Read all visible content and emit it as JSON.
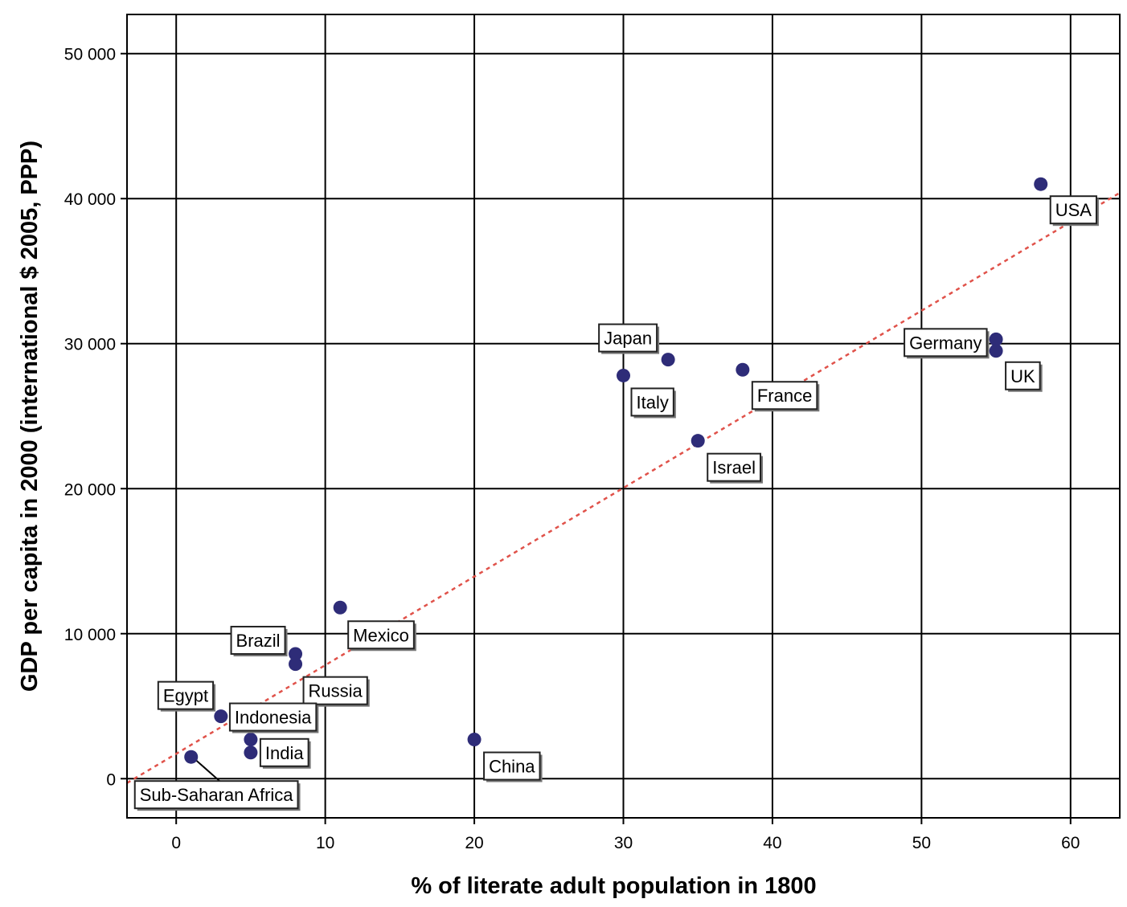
{
  "chart_data": {
    "type": "scatter",
    "xlabel": "% of literate adult  population in 1800",
    "ylabel": "GDP per capita in 2000 (international $ 2005, PPP)",
    "xlim": [
      -3.3,
      63.3
    ],
    "ylim": [
      -2700,
      52700
    ],
    "x_ticks": [
      0,
      10,
      20,
      30,
      40,
      50,
      60
    ],
    "x_tick_labels": [
      "0",
      "10",
      "20",
      "30",
      "40",
      "50",
      "60"
    ],
    "y_ticks": [
      0,
      10000,
      20000,
      30000,
      40000,
      50000
    ],
    "y_tick_labels": [
      "0",
      "10 000",
      "20 000",
      "30 000",
      "40 000",
      "50 000"
    ],
    "grid": true,
    "colors": {
      "points": "#2e2c78",
      "trend": "#e0524a",
      "grid": "#000000"
    },
    "trendline": {
      "style": "dashed",
      "x": [
        -3.3,
        63.3
      ],
      "y": [
        -300,
        40400
      ]
    },
    "points": [
      {
        "label": "USA",
        "x": 58,
        "y": 41000
      },
      {
        "label": "Germany",
        "x": 55,
        "y": 30300
      },
      {
        "label": "UK",
        "x": 55,
        "y": 29500
      },
      {
        "label": "Japan",
        "x": 33,
        "y": 28900
      },
      {
        "label": "Italy",
        "x": 30,
        "y": 27800
      },
      {
        "label": "France",
        "x": 38,
        "y": 28200
      },
      {
        "label": "Israel",
        "x": 35,
        "y": 23300
      },
      {
        "label": "Mexico",
        "x": 11,
        "y": 11800
      },
      {
        "label": "Brazil",
        "x": 8,
        "y": 8600
      },
      {
        "label": "Russia",
        "x": 8,
        "y": 7900
      },
      {
        "label": "Egypt",
        "x": 3,
        "y": 4300
      },
      {
        "label": "Indonesia",
        "x": 5,
        "y": 2700
      },
      {
        "label": "India",
        "x": 5,
        "y": 1800
      },
      {
        "label": "China",
        "x": 20,
        "y": 2700
      },
      {
        "label": "Sub-Saharan Africa",
        "x": 1,
        "y": 1500
      }
    ]
  }
}
